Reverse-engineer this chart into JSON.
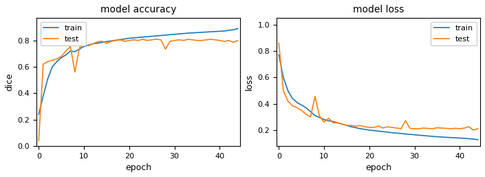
{
  "title_acc": "model accuracy",
  "title_loss": "model loss",
  "xlabel": "epoch",
  "ylabel_acc": "dice",
  "ylabel_loss": "loss",
  "train_color": "#1f77b4",
  "test_color": "#ff7f0e",
  "train_label": "train",
  "test_label": "test",
  "acc_ylim": [
    0.0,
    0.97
  ],
  "loss_ylim": [
    0.08,
    1.05
  ],
  "acc_yticks": [
    0.0,
    0.2,
    0.4,
    0.6,
    0.8
  ],
  "loss_yticks": [
    0.2,
    0.4,
    0.6,
    0.8,
    1.0
  ],
  "xlim": [
    -0.5,
    44.5
  ],
  "xticks": [
    0,
    10,
    20,
    30,
    40
  ],
  "epochs": 45,
  "train_acc": [
    0.24,
    0.38,
    0.51,
    0.6,
    0.64,
    0.67,
    0.69,
    0.72,
    0.715,
    0.735,
    0.755,
    0.765,
    0.775,
    0.78,
    0.785,
    0.792,
    0.797,
    0.802,
    0.807,
    0.812,
    0.817,
    0.82,
    0.823,
    0.826,
    0.829,
    0.832,
    0.835,
    0.838,
    0.841,
    0.844,
    0.847,
    0.85,
    0.853,
    0.856,
    0.858,
    0.86,
    0.862,
    0.864,
    0.866,
    0.868,
    0.87,
    0.872,
    0.877,
    0.882,
    0.89
  ],
  "test_acc": [
    0.04,
    0.62,
    0.64,
    0.65,
    0.66,
    0.68,
    0.72,
    0.755,
    0.56,
    0.745,
    0.77,
    0.76,
    0.775,
    0.79,
    0.795,
    0.778,
    0.793,
    0.8,
    0.805,
    0.793,
    0.8,
    0.805,
    0.8,
    0.81,
    0.8,
    0.805,
    0.81,
    0.805,
    0.735,
    0.793,
    0.8,
    0.805,
    0.8,
    0.81,
    0.805,
    0.8,
    0.8,
    0.805,
    0.81,
    0.805,
    0.8,
    0.793,
    0.8,
    0.787,
    0.8
  ],
  "train_loss": [
    0.77,
    0.6,
    0.5,
    0.44,
    0.41,
    0.39,
    0.37,
    0.34,
    0.31,
    0.295,
    0.28,
    0.27,
    0.265,
    0.255,
    0.245,
    0.235,
    0.225,
    0.218,
    0.21,
    0.205,
    0.2,
    0.196,
    0.192,
    0.188,
    0.184,
    0.18,
    0.177,
    0.174,
    0.17,
    0.167,
    0.164,
    0.161,
    0.158,
    0.155,
    0.152,
    0.149,
    0.147,
    0.145,
    0.143,
    0.141,
    0.139,
    0.137,
    0.134,
    0.131,
    0.127
  ],
  "test_loss": [
    0.86,
    0.5,
    0.42,
    0.385,
    0.37,
    0.35,
    0.32,
    0.3,
    0.455,
    0.305,
    0.26,
    0.29,
    0.255,
    0.255,
    0.245,
    0.235,
    0.235,
    0.23,
    0.235,
    0.225,
    0.22,
    0.22,
    0.23,
    0.215,
    0.225,
    0.22,
    0.215,
    0.21,
    0.272,
    0.212,
    0.21,
    0.21,
    0.215,
    0.212,
    0.21,
    0.218,
    0.215,
    0.213,
    0.21,
    0.213,
    0.21,
    0.215,
    0.225,
    0.2,
    0.21
  ]
}
